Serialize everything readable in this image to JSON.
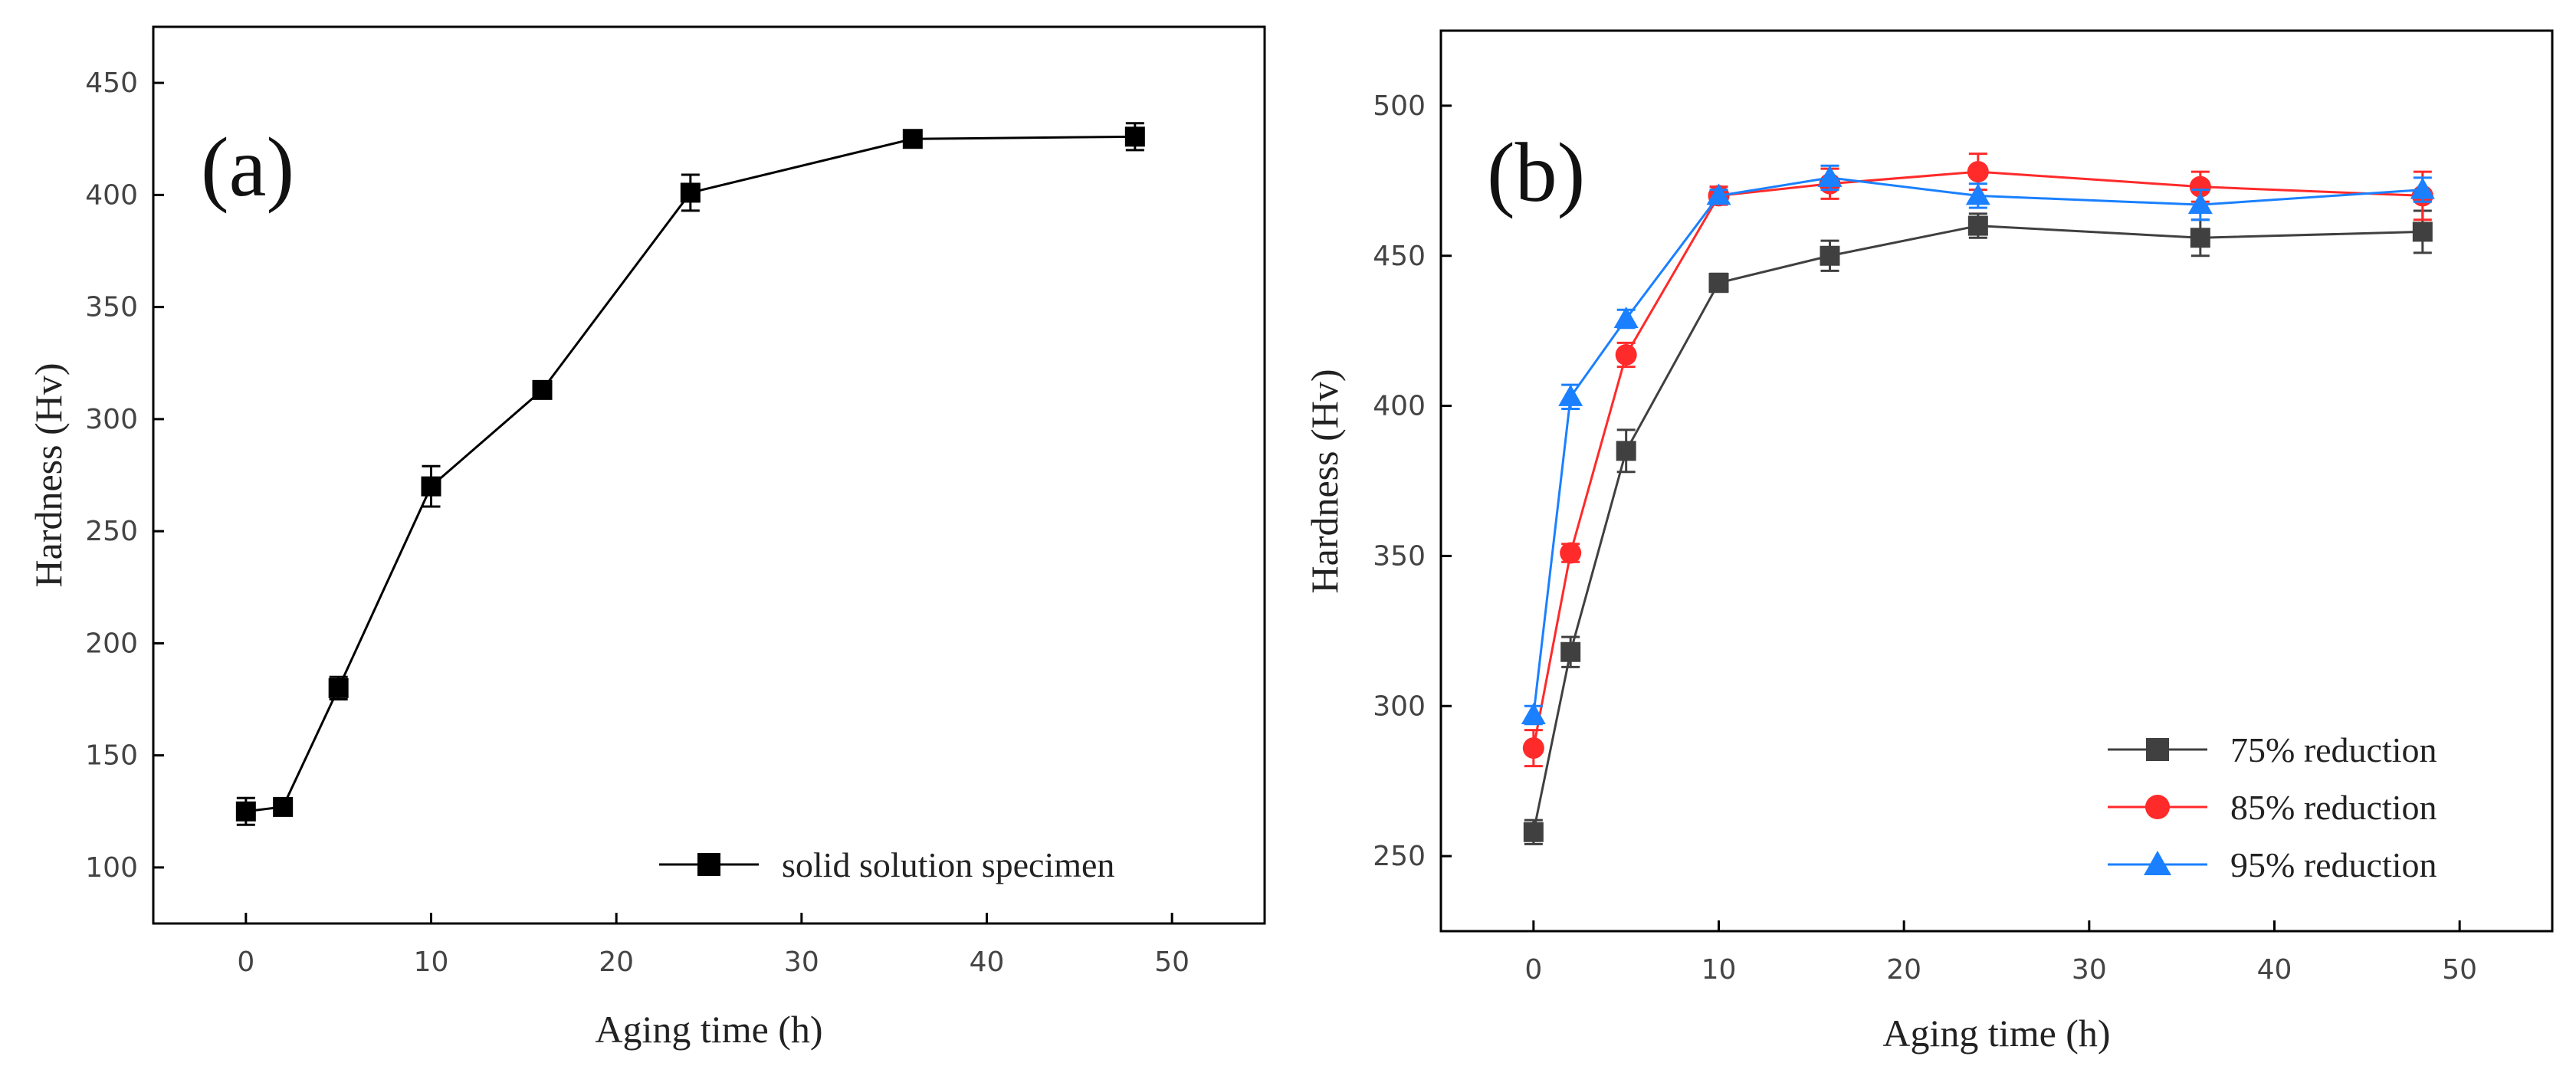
{
  "chart_data": [
    {
      "type": "line",
      "panel_label": "(a)",
      "xlabel": "Aging time (h)",
      "ylabel": "Hardness (Hv)",
      "xlim": [
        -5,
        55
      ],
      "ylim": [
        75,
        475
      ],
      "xticks": [
        0,
        10,
        20,
        30,
        40,
        50
      ],
      "yticks": [
        100,
        150,
        200,
        250,
        300,
        350,
        400,
        450
      ],
      "legend_position": "bottom-right",
      "series": [
        {
          "name": "solid solution specimen",
          "color": "#000000",
          "marker": "square",
          "x": [
            0,
            2,
            5,
            10,
            16,
            24,
            36,
            48
          ],
          "y": [
            125,
            127,
            180,
            270,
            313,
            401,
            425,
            426
          ],
          "err": [
            6,
            3,
            5,
            9,
            3,
            8,
            3,
            6
          ]
        }
      ]
    },
    {
      "type": "line",
      "panel_label": "(b)",
      "xlabel": "Aging time (h)",
      "ylabel": "Hardness (Hv)",
      "xlim": [
        -5,
        55
      ],
      "ylim": [
        225,
        525
      ],
      "xticks": [
        0,
        10,
        20,
        30,
        40,
        50
      ],
      "yticks": [
        250,
        300,
        350,
        400,
        450,
        500
      ],
      "legend_position": "bottom-right",
      "series": [
        {
          "name": "75% reduction",
          "color": "#404040",
          "marker": "square",
          "x": [
            0,
            2,
            5,
            10,
            16,
            24,
            36,
            48
          ],
          "y": [
            258,
            318,
            385,
            441,
            450,
            460,
            456,
            458
          ],
          "err": [
            4,
            5,
            7,
            3,
            5,
            4,
            6,
            7
          ]
        },
        {
          "name": "85% reduction",
          "color": "#ff2a2a",
          "marker": "circle",
          "x": [
            0,
            2,
            5,
            10,
            16,
            24,
            36,
            48
          ],
          "y": [
            286,
            351,
            417,
            470,
            474,
            478,
            473,
            470
          ],
          "err": [
            6,
            3,
            4,
            3,
            5,
            6,
            5,
            8
          ]
        },
        {
          "name": "95% reduction",
          "color": "#1a80ff",
          "marker": "triangle",
          "x": [
            0,
            2,
            5,
            10,
            16,
            24,
            36,
            48
          ],
          "y": [
            297,
            403,
            429,
            470,
            476,
            470,
            467,
            472
          ],
          "err": [
            3,
            4,
            3,
            2,
            4,
            4,
            5,
            4
          ]
        }
      ]
    }
  ]
}
